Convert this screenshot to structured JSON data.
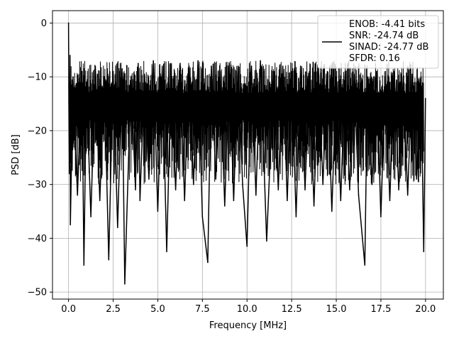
{
  "chart_data": {
    "type": "line",
    "xlabel": "Frequency [MHz]",
    "ylabel": "PSD [dB]",
    "xlim": [
      -0.9,
      21.0
    ],
    "ylim": [
      -51.3,
      2.3
    ],
    "x_ticks": [
      0.0,
      2.5,
      5.0,
      7.5,
      10.0,
      12.5,
      15.0,
      17.5,
      20.0
    ],
    "x_tick_labels": [
      "0.0",
      "2.5",
      "5.0",
      "7.5",
      "10.0",
      "12.5",
      "15.0",
      "17.5",
      "20.0"
    ],
    "y_ticks": [
      0,
      -10,
      -20,
      -30,
      -40,
      -50
    ],
    "y_tick_labels": [
      "0",
      "−10",
      "−20",
      "−30",
      "−40",
      "−50"
    ],
    "grid": true,
    "legend_position": "top-right",
    "legend": {
      "line_color": "#000000",
      "lines": [
        "ENOB: -4.41 bits",
        "SNR: -24.74 dB",
        "SINAD: -24.77 dB",
        "SFDR: 0.16"
      ]
    },
    "series": [
      {
        "color": "#000000",
        "x": [
          0.0,
          0.02,
          0.05,
          0.08,
          0.1,
          0.25,
          0.5,
          0.75,
          0.86,
          1.0,
          1.25,
          1.5,
          1.75,
          2.0,
          2.25,
          2.5,
          2.75,
          3.0,
          3.15,
          3.5,
          3.75,
          3.9,
          4.0,
          4.25,
          4.5,
          4.75,
          5.0,
          5.25,
          5.5,
          5.75,
          6.0,
          6.25,
          6.5,
          6.75,
          7.0,
          7.25,
          7.5,
          7.8,
          8.0,
          8.25,
          8.5,
          8.75,
          9.0,
          9.25,
          9.5,
          9.75,
          10.0,
          10.25,
          10.5,
          10.75,
          11.1,
          11.5,
          11.75,
          12.0,
          12.25,
          12.5,
          12.75,
          13.0,
          13.25,
          13.5,
          13.75,
          14.0,
          14.25,
          14.5,
          14.75,
          15.0,
          15.25,
          15.5,
          15.75,
          16.0,
          16.25,
          16.6,
          16.75,
          17.0,
          17.25,
          17.5,
          17.75,
          18.0,
          18.25,
          18.5,
          18.75,
          19.0,
          19.25,
          19.5,
          19.75,
          19.9,
          20.0
        ],
        "y": [
          0.0,
          -15.0,
          -28.0,
          -6.0,
          -37.5,
          -10.0,
          -32.0,
          -9.0,
          -45.0,
          -11.0,
          -36.0,
          -8.0,
          -33.0,
          -10.0,
          -44.0,
          -9.0,
          -38.0,
          -8.5,
          -48.5,
          -10.0,
          -31.0,
          -7.5,
          -33.0,
          -9.5,
          -29.0,
          -7.0,
          -35.0,
          -8.0,
          -42.5,
          -9.0,
          -31.0,
          -7.5,
          -33.0,
          -8.0,
          -30.0,
          -7.0,
          -36.0,
          -44.5,
          -8.0,
          -29.0,
          -9.0,
          -34.0,
          -7.5,
          -33.0,
          -8.0,
          -30.0,
          -41.5,
          -8.0,
          -32.0,
          -7.0,
          -40.5,
          -9.0,
          -31.0,
          -8.0,
          -33.0,
          -9.0,
          -36.0,
          -8.0,
          -31.0,
          -9.0,
          -34.0,
          -8.5,
          -30.0,
          -9.0,
          -35.0,
          -10.0,
          -33.0,
          -9.0,
          -31.0,
          -9.5,
          -32.0,
          -45.0,
          -10.0,
          -30.0,
          -9.0,
          -36.0,
          -10.0,
          -33.0,
          -9.0,
          -31.0,
          -10.0,
          -32.0,
          -9.5,
          -29.0,
          -10.0,
          -42.5,
          -14.0
        ]
      }
    ]
  }
}
